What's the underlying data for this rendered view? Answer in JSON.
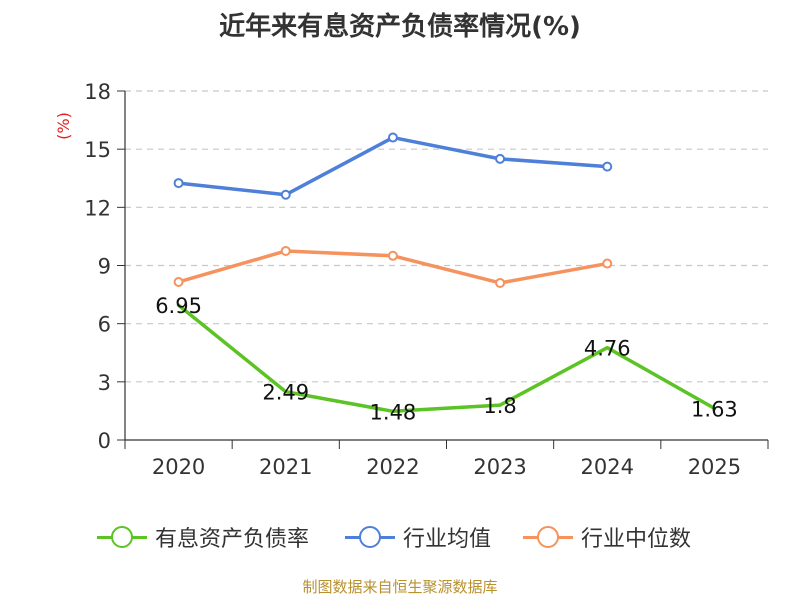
{
  "chart_data": {
    "type": "line",
    "title": "近年来有息资产负债率情况(%)",
    "ylabel": "(%)",
    "categories": [
      "2020",
      "2021",
      "2022",
      "2023",
      "2024",
      "2025"
    ],
    "ylim": [
      0,
      18
    ],
    "yticks": [
      "0",
      "3",
      "6",
      "9",
      "12",
      "15",
      "18"
    ],
    "grid": true,
    "legend_position": "bottom",
    "series": [
      {
        "name": "有息资产负债率",
        "color": "#5bc424",
        "values": [
          6.95,
          2.49,
          1.48,
          1.8,
          4.76,
          1.63
        ],
        "labels": [
          "6.95",
          "2.49",
          "1.48",
          "1.8",
          "4.76",
          "1.63"
        ]
      },
      {
        "name": "行业均值",
        "color": "#4e7fd9",
        "values": [
          13.25,
          12.65,
          15.6,
          14.5,
          14.1,
          null
        ]
      },
      {
        "name": "行业中位数",
        "color": "#f5925e",
        "values": [
          8.15,
          9.75,
          9.5,
          8.1,
          9.1,
          null
        ]
      }
    ],
    "source": "制图数据来自恒生聚源数据库"
  }
}
